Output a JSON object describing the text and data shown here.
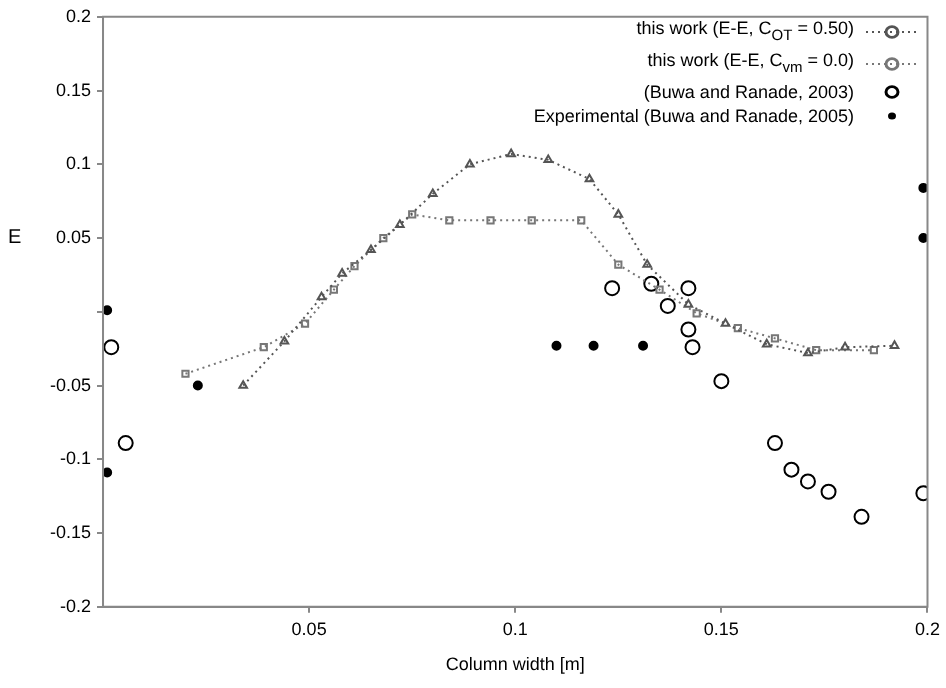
{
  "chart_data": {
    "type": "line",
    "xlabel": "Column width [m]",
    "ylabel": "E",
    "xlim": [
      0,
      0.2
    ],
    "xticks": [
      0.05,
      0.1,
      0.15,
      0.2
    ],
    "ylim": [
      -0.2,
      0.2
    ],
    "yticks": [
      -0.2,
      -0.15,
      -0.1,
      -0.05,
      {
        "value": 0,
        "label": null
      },
      0.05,
      0.1,
      0.15,
      0.2
    ],
    "legend": "top right",
    "line_style": "dotted",
    "series": [
      {
        "name": "this work (E-E, C$_{OT}$ = 0.50)",
        "marker": "triangle",
        "color": "#555555",
        "x": [
          0.034,
          0.044,
          0.053,
          0.058,
          0.065,
          0.072,
          0.08,
          0.089,
          0.099,
          0.108,
          0.118,
          0.125,
          0.132,
          0.142,
          0.151,
          0.161,
          0.171,
          0.18,
          0.192
        ],
        "values": [
          -0.05,
          -0.02,
          0.01,
          0.026,
          0.042,
          0.059,
          0.08,
          0.1,
          0.107,
          0.103,
          0.09,
          0.066,
          0.032,
          0.005,
          -0.008,
          -0.022,
          -0.028,
          -0.024,
          -0.023
        ]
      },
      {
        "name": "this work (E-E, C$_{vm}$ = 0.0)",
        "marker": "square",
        "color": "#777777",
        "x": [
          0.02,
          0.039,
          0.049,
          0.056,
          0.061,
          0.068,
          0.075,
          0.084,
          0.094,
          0.104,
          0.116,
          0.125,
          0.135,
          0.144,
          0.154,
          0.163,
          0.173,
          0.187
        ],
        "values": [
          -0.042,
          -0.024,
          -0.008,
          0.015,
          0.031,
          0.05,
          0.066,
          0.062,
          0.062,
          0.062,
          0.062,
          0.032,
          0.015,
          -0.001,
          -0.011,
          -0.018,
          -0.026,
          -0.026
        ]
      },
      {
        "name": "(Buwa and Ranade, 2003)",
        "type": "scatter",
        "marker": "circle",
        "color": "#000000",
        "x": [
          0.002,
          0.0055,
          0.1235,
          0.133,
          0.137,
          0.142,
          0.142,
          0.143,
          0.15,
          0.163,
          0.167,
          0.171,
          0.176,
          0.184,
          0.199
        ],
        "values": [
          -0.024,
          -0.089,
          0.016,
          0.019,
          0.004,
          0.016,
          -0.012,
          -0.024,
          -0.047,
          -0.089,
          -0.107,
          -0.115,
          -0.122,
          -0.139,
          -0.123
        ]
      },
      {
        "name": "Experimental (Buwa and Ranade, 2005)",
        "type": "scatter",
        "marker": "dot",
        "color": "#000000",
        "x": [
          0.001,
          0.023,
          0.001,
          0.11,
          0.119,
          0.131,
          0.199,
          0.199
        ],
        "values": [
          0.001,
          -0.05,
          -0.109,
          -0.023,
          -0.023,
          -0.023,
          0.084,
          0.05
        ]
      }
    ]
  }
}
